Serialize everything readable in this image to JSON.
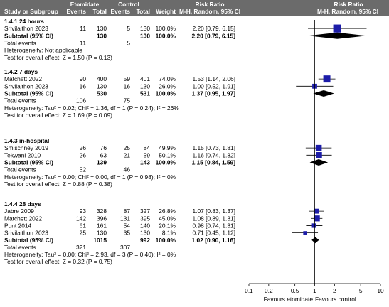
{
  "header": {
    "study": "Study or Subgroup",
    "group1": "Etomidate",
    "group2": "Control",
    "col_events": "Events",
    "col_total": "Total",
    "col_weight": "Weight",
    "rr_title": "Risk Ratio",
    "rr_method": "M-H, Random, 95% CI"
  },
  "axis": {
    "ticks": [
      "0.1",
      "0.2",
      "0.5",
      "1",
      "2",
      "5",
      "10"
    ],
    "left_label": "Favours etomidate",
    "right_label": "Favours control"
  },
  "colors": {
    "header_bg": "#6b6b6b",
    "study_marker": "#1c1ca8",
    "diamond": "#000000"
  },
  "chart_data": {
    "type": "forest",
    "measure": "Risk Ratio (M-H, Random, 95% CI)",
    "x_scale": "log",
    "xlim": [
      0.1,
      10
    ],
    "subgroups": [
      {
        "title": "1.4.1 24 hours",
        "studies": [
          {
            "name": "Srivilaithon 2023",
            "e1": "11",
            "n1": "130",
            "e2": "5",
            "n2": "130",
            "weight": "100.0%",
            "ci_text": "2.20 [0.79, 6.15]",
            "rr": 2.2,
            "lo": 0.79,
            "hi": 6.15,
            "w": 100
          }
        ],
        "subtotal": {
          "label": "Subtotal (95% CI)",
          "n1": "130",
          "n2": "130",
          "weight": "100.0%",
          "ci_text": "2.20 [0.79, 6.15]",
          "rr": 2.2,
          "lo": 0.79,
          "hi": 6.15
        },
        "total_events": {
          "label": "Total events",
          "e1": "11",
          "e2": "5"
        },
        "heterogeneity": "Heterogeneity: Not applicable",
        "overall_test": "Test for overall effect: Z = 1.50 (P = 0.13)"
      },
      {
        "title": "1.4.2 7 days",
        "studies": [
          {
            "name": "Matchett 2022",
            "e1": "90",
            "n1": "400",
            "e2": "59",
            "n2": "401",
            "weight": "74.0%",
            "ci_text": "1.53 [1.14, 2.06]",
            "rr": 1.53,
            "lo": 1.14,
            "hi": 2.06,
            "w": 74
          },
          {
            "name": "Srivilaithon 2023",
            "e1": "16",
            "n1": "130",
            "e2": "16",
            "n2": "130",
            "weight": "26.0%",
            "ci_text": "1.00 [0.52, 1.91]",
            "rr": 1.0,
            "lo": 0.52,
            "hi": 1.91,
            "w": 26
          }
        ],
        "subtotal": {
          "label": "Subtotal (95% CI)",
          "n1": "530",
          "n2": "531",
          "weight": "100.0%",
          "ci_text": "1.37 [0.95, 1.97]",
          "rr": 1.37,
          "lo": 0.95,
          "hi": 1.97
        },
        "total_events": {
          "label": "Total events",
          "e1": "106",
          "e2": "75"
        },
        "heterogeneity": "Heterogeneity: Tau² = 0.02; Chi² = 1.36, df = 1 (P = 0.24); I² = 26%",
        "overall_test": "Test for overall effect: Z = 1.69 (P = 0.09)"
      },
      {
        "title": "1.4.3 in-hospital",
        "studies": [
          {
            "name": "Smischney 2019",
            "e1": "26",
            "n1": "76",
            "e2": "25",
            "n2": "84",
            "weight": "49.9%",
            "ci_text": "1.15 [0.73, 1.81]",
            "rr": 1.15,
            "lo": 0.73,
            "hi": 1.81,
            "w": 49.9
          },
          {
            "name": "Tekwani 2010",
            "e1": "26",
            "n1": "63",
            "e2": "21",
            "n2": "59",
            "weight": "50.1%",
            "ci_text": "1.16 [0.74, 1.82]",
            "rr": 1.16,
            "lo": 0.74,
            "hi": 1.82,
            "w": 50.1
          }
        ],
        "subtotal": {
          "label": "Subtotal (95% CI)",
          "n1": "139",
          "n2": "143",
          "weight": "100.0%",
          "ci_text": "1.15 [0.84, 1.59]",
          "rr": 1.15,
          "lo": 0.84,
          "hi": 1.59
        },
        "total_events": {
          "label": "Total events",
          "e1": "52",
          "e2": "46"
        },
        "heterogeneity": "Heterogeneity: Tau² = 0.00; Chi² = 0.00, df = 1 (P = 0.98); I² = 0%",
        "overall_test": "Test for overall effect: Z = 0.88 (P = 0.38)"
      },
      {
        "title": "1.4.4 28 days",
        "studies": [
          {
            "name": "Jabre 2009",
            "e1": "93",
            "n1": "328",
            "e2": "87",
            "n2": "327",
            "weight": "26.8%",
            "ci_text": "1.07 [0.83, 1.37]",
            "rr": 1.07,
            "lo": 0.83,
            "hi": 1.37,
            "w": 26.8
          },
          {
            "name": "Matchett 2022",
            "e1": "142",
            "n1": "396",
            "e2": "131",
            "n2": "395",
            "weight": "45.0%",
            "ci_text": "1.08 [0.89, 1.31]",
            "rr": 1.08,
            "lo": 0.89,
            "hi": 1.31,
            "w": 45
          },
          {
            "name": "Punt 2014",
            "e1": "61",
            "n1": "161",
            "e2": "54",
            "n2": "140",
            "weight": "20.1%",
            "ci_text": "0.98 [0.74, 1.31]",
            "rr": 0.98,
            "lo": 0.74,
            "hi": 1.31,
            "w": 20.1
          },
          {
            "name": "Srivilaithon 2023",
            "e1": "25",
            "n1": "130",
            "e2": "35",
            "n2": "130",
            "weight": "8.1%",
            "ci_text": "0.71 [0.45, 1.12]",
            "rr": 0.71,
            "lo": 0.45,
            "hi": 1.12,
            "w": 8.1
          }
        ],
        "subtotal": {
          "label": "Subtotal (95% CI)",
          "n1": "1015",
          "n2": "992",
          "weight": "100.0%",
          "ci_text": "1.02 [0.90, 1.16]",
          "rr": 1.02,
          "lo": 0.9,
          "hi": 1.16
        },
        "total_events": {
          "label": "Total events",
          "e1": "321",
          "e2": "307"
        },
        "heterogeneity": "Heterogeneity: Tau² = 0.00; Chi² = 2.93, df = 3 (P = 0.40); I² = 0%",
        "overall_test": "Test for overall effect: Z = 0.32 (P = 0.75)"
      }
    ]
  }
}
